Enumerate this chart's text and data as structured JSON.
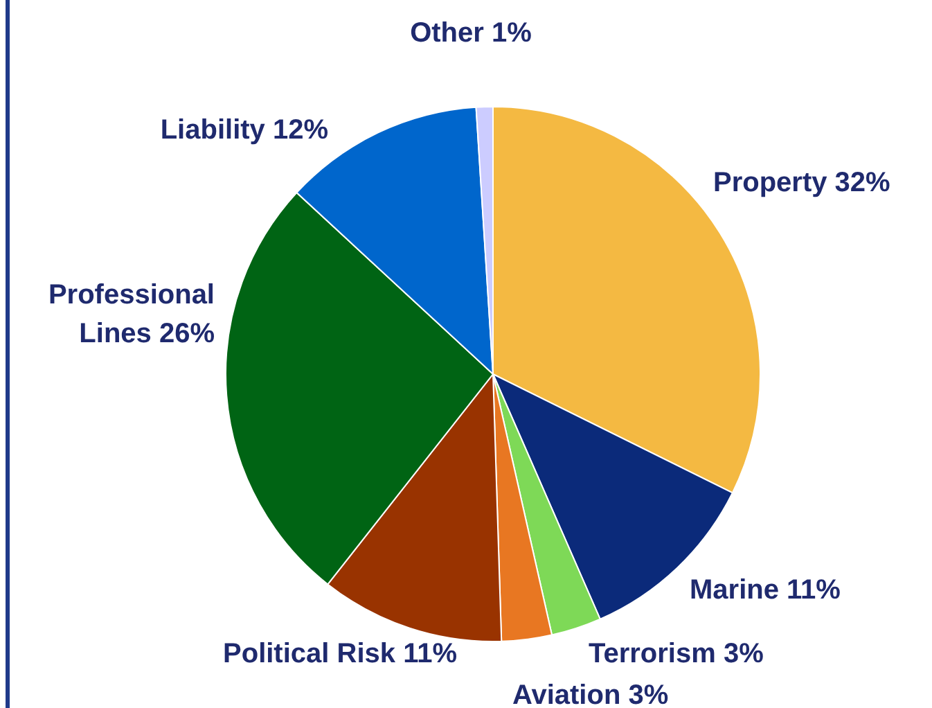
{
  "chart_data": {
    "type": "pie",
    "categories": [
      "Property",
      "Marine",
      "Terrorism",
      "Aviation",
      "Political Risk",
      "Professional Lines",
      "Liability",
      "Other"
    ],
    "values": [
      32,
      11,
      3,
      3,
      11,
      26,
      12,
      1
    ],
    "value_labels": [
      "32%",
      "11%",
      "3%",
      "3%",
      "11%",
      "26%",
      "12%",
      "1%"
    ],
    "colors": [
      "#f4b942",
      "#0b2a7a",
      "#7ed957",
      "#e87722",
      "#993300",
      "#006414",
      "#0066cc",
      "#ccccff"
    ]
  }
}
